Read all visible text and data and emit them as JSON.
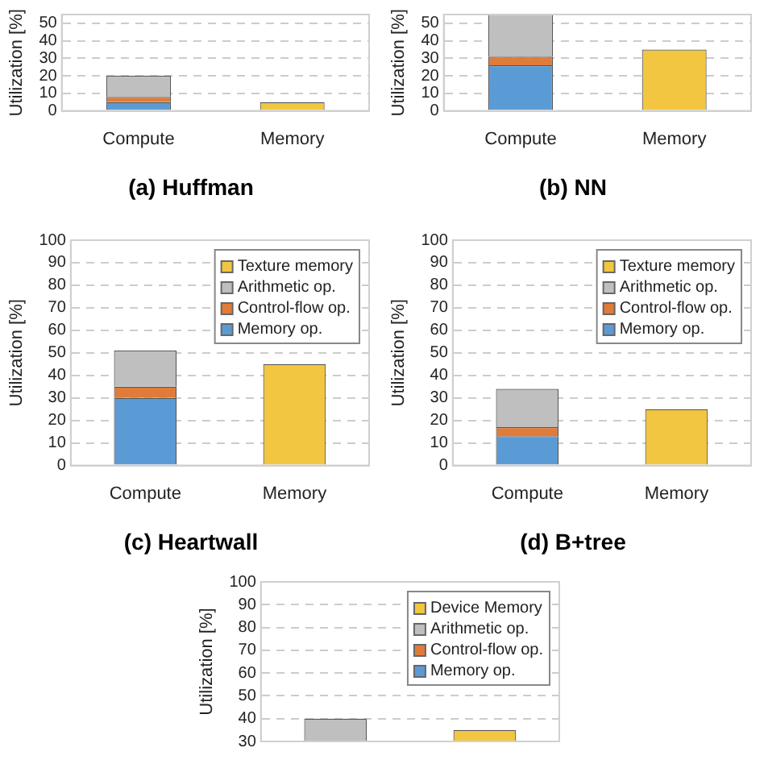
{
  "chart_data": [
    {
      "type": "bar",
      "title": "(a) Huffman",
      "ylabel": "Utilization [%]",
      "categories": [
        "Compute",
        "Memory"
      ],
      "stacked": true,
      "ylim": [
        0,
        55
      ],
      "yticks": [
        0,
        10,
        20,
        30,
        40,
        50
      ],
      "grid": "y",
      "legend": false,
      "series": [
        {
          "color": "#5b9bd5",
          "values": [
            5,
            null
          ]
        },
        {
          "color": "#e07b39",
          "values": [
            3,
            null
          ]
        },
        {
          "color": "#bfbfbf",
          "values": [
            12,
            null
          ]
        },
        {
          "color": "#f2c641",
          "values": [
            null,
            5
          ]
        }
      ]
    },
    {
      "type": "bar",
      "title": "(b) NN",
      "ylabel": "Utilization [%]",
      "categories": [
        "Compute",
        "Memory"
      ],
      "stacked": true,
      "ylim": [
        0,
        55
      ],
      "yticks": [
        0,
        10,
        20,
        30,
        40,
        50
      ],
      "grid": "y",
      "legend": false,
      "series": [
        {
          "color": "#5b9bd5",
          "values": [
            26,
            null
          ]
        },
        {
          "color": "#e07b39",
          "values": [
            5,
            null
          ]
        },
        {
          "color": "#bfbfbf",
          "values": [
            24,
            null
          ]
        },
        {
          "color": "#f2c641",
          "values": [
            null,
            35
          ]
        }
      ]
    },
    {
      "type": "bar",
      "title": "(c) Heartwall",
      "ylabel": "Utilization [%]",
      "categories": [
        "Compute",
        "Memory"
      ],
      "stacked": true,
      "ylim": [
        0,
        100
      ],
      "yticks": [
        0,
        10,
        20,
        30,
        40,
        50,
        60,
        70,
        80,
        90,
        100
      ],
      "grid": "y",
      "legend": "top right",
      "series": [
        {
          "name": "Memory op.",
          "color": "#5b9bd5",
          "values": [
            30,
            null
          ]
        },
        {
          "name": "Control-flow op.",
          "color": "#e07b39",
          "values": [
            5,
            null
          ]
        },
        {
          "name": "Arithmetic op.",
          "color": "#bfbfbf",
          "values": [
            16,
            null
          ]
        },
        {
          "name": "Texture memory",
          "color": "#f2c641",
          "values": [
            null,
            45
          ]
        }
      ]
    },
    {
      "type": "bar",
      "title": "(d) B+tree",
      "ylabel": "Utilization [%]",
      "categories": [
        "Compute",
        "Memory"
      ],
      "stacked": true,
      "ylim": [
        0,
        100
      ],
      "yticks": [
        0,
        10,
        20,
        30,
        40,
        50,
        60,
        70,
        80,
        90,
        100
      ],
      "grid": "y",
      "legend": "top right",
      "series": [
        {
          "name": "Memory op.",
          "color": "#5b9bd5",
          "values": [
            13,
            null
          ]
        },
        {
          "name": "Control-flow op.",
          "color": "#e07b39",
          "values": [
            4,
            null
          ]
        },
        {
          "name": "Arithmetic op.",
          "color": "#bfbfbf",
          "values": [
            17,
            null
          ]
        },
        {
          "name": "Texture memory",
          "color": "#f2c641",
          "values": [
            null,
            25
          ]
        }
      ]
    },
    {
      "type": "bar",
      "ylabel": "Utilization [%]",
      "categories": [
        null,
        null
      ],
      "stacked": true,
      "ylim": [
        30,
        100
      ],
      "yticks": [
        30,
        40,
        50,
        60,
        70,
        80,
        90,
        100
      ],
      "grid": "y",
      "legend": "top right",
      "series": [
        {
          "name": "Memory op.",
          "color": "#5b9bd5",
          "values": [
            null,
            null
          ]
        },
        {
          "name": "Control-flow op.",
          "color": "#e07b39",
          "values": [
            null,
            null
          ]
        },
        {
          "name": "Arithmetic op.",
          "color": "#bfbfbf",
          "values": [
            40,
            null
          ]
        },
        {
          "name": "Device Memory",
          "color": "#f2c641",
          "values": [
            null,
            35
          ]
        }
      ]
    }
  ]
}
